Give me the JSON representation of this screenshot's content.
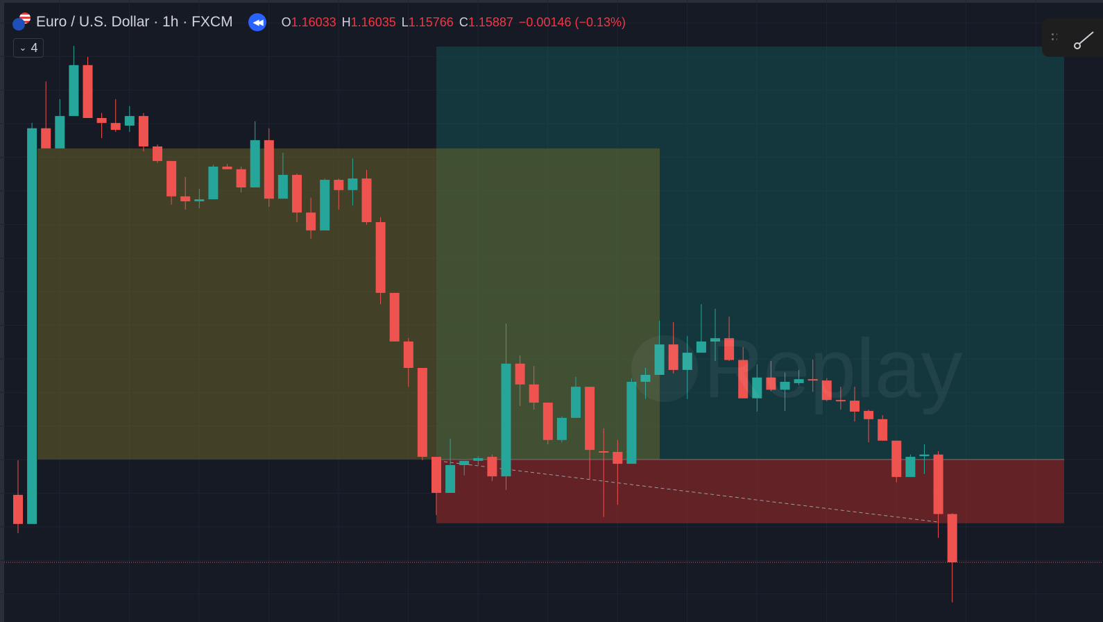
{
  "header": {
    "symbol_title": "Euro / U.S. Dollar · 1h · FXCM",
    "ohlc": [
      {
        "key": "O",
        "value": "1.16033"
      },
      {
        "key": "H",
        "value": "1.16035"
      },
      {
        "key": "L",
        "value": "1.15766"
      },
      {
        "key": "C",
        "value": "1.15887"
      }
    ],
    "change": "−0.00146 (−0.13%)",
    "indicators_count": "4"
  },
  "watermark": "Replay",
  "colors": {
    "up": "#26a69a",
    "down": "#ef5350",
    "background": "#161a25",
    "accent": "#2962ff"
  },
  "chart_data": {
    "type": "candlestick",
    "symbol": "EURUSD",
    "interval": "1h",
    "ohlc": [
      [
        1.16091,
        1.16196,
        1.15975,
        1.16003
      ],
      [
        1.16003,
        1.17216,
        1.16003,
        1.172
      ],
      [
        1.172,
        1.17342,
        1.17139,
        1.17139
      ],
      [
        1.17139,
        1.17288,
        1.17139,
        1.17237
      ],
      [
        1.17237,
        1.17449,
        1.17237,
        1.17391
      ],
      [
        1.17391,
        1.17416,
        1.17231,
        1.17231
      ],
      [
        1.17231,
        1.17246,
        1.1717,
        1.17216
      ],
      [
        1.17216,
        1.17288,
        1.17189,
        1.17195
      ],
      [
        1.17208,
        1.17267,
        1.17189,
        1.17237
      ],
      [
        1.17237,
        1.17246,
        1.1713,
        1.17145
      ],
      [
        1.17145,
        1.17151,
        1.17095,
        1.17101
      ],
      [
        1.17101,
        1.17101,
        1.16969,
        1.16994
      ],
      [
        1.16994,
        1.17053,
        1.16954,
        1.16979
      ],
      [
        1.16979,
        1.17017,
        1.16958,
        1.16985
      ],
      [
        1.16985,
        1.1709,
        1.16985,
        1.17084
      ],
      [
        1.17084,
        1.17092,
        1.17076,
        1.17076
      ],
      [
        1.17076,
        1.17084,
        1.17006,
        1.17021
      ],
      [
        1.17021,
        1.17221,
        1.17021,
        1.17164
      ],
      [
        1.17164,
        1.172,
        1.16962,
        1.16987
      ],
      [
        1.16987,
        1.17126,
        1.16987,
        1.17059
      ],
      [
        1.17059,
        1.17063,
        1.16916,
        1.16945
      ],
      [
        1.16945,
        1.1699,
        1.16866,
        1.16891
      ],
      [
        1.16891,
        1.17048,
        1.16891,
        1.17044
      ],
      [
        1.17044,
        1.17048,
        1.16954,
        1.17013
      ],
      [
        1.17013,
        1.17109,
        1.16966,
        1.17048
      ],
      [
        1.17048,
        1.17074,
        1.16908,
        1.16916
      ],
      [
        1.16916,
        1.16931,
        1.16668,
        1.16702
      ],
      [
        1.16702,
        1.16702,
        1.16555,
        1.16555
      ],
      [
        1.16555,
        1.16565,
        1.16418,
        1.16475
      ],
      [
        1.16475,
        1.16475,
        1.16196,
        1.16206
      ],
      [
        1.16206,
        1.16206,
        1.1603,
        1.16097
      ],
      [
        1.16097,
        1.16261,
        1.16097,
        1.16181
      ],
      [
        1.16181,
        1.16194,
        1.1615,
        1.16194
      ],
      [
        1.16194,
        1.16208,
        1.16181,
        1.16202
      ],
      [
        1.16206,
        1.16213,
        1.16133,
        1.16147
      ],
      [
        1.16147,
        1.16609,
        1.16106,
        1.16488
      ],
      [
        1.16488,
        1.16513,
        1.1636,
        1.16425
      ],
      [
        1.16425,
        1.16481,
        1.16349,
        1.1637
      ],
      [
        1.1637,
        1.1637,
        1.16244,
        1.16257
      ],
      [
        1.16257,
        1.16328,
        1.1625,
        1.16324
      ],
      [
        1.16324,
        1.16448,
        1.16324,
        1.16418
      ],
      [
        1.16418,
        1.16418,
        1.16139,
        1.16227
      ],
      [
        1.16223,
        1.16292,
        1.16024,
        1.16219
      ],
      [
        1.16221,
        1.16257,
        1.16061,
        1.16185
      ],
      [
        1.16185,
        1.16444,
        1.16185,
        1.16433
      ],
      [
        1.16433,
        1.16475,
        1.16381,
        1.16454
      ],
      [
        1.16454,
        1.16618,
        1.16454,
        1.16546
      ],
      [
        1.16546,
        1.16614,
        1.16458,
        1.16469
      ],
      [
        1.16469,
        1.16572,
        1.16381,
        1.16521
      ],
      [
        1.16521,
        1.16668,
        1.16521,
        1.16555
      ],
      [
        1.16555,
        1.16654,
        1.16496,
        1.16565
      ],
      [
        1.16565,
        1.1663,
        1.16496,
        1.16499
      ],
      [
        1.16499,
        1.16538,
        1.16383,
        1.16383
      ],
      [
        1.16383,
        1.16486,
        1.16343,
        1.16446
      ],
      [
        1.16446,
        1.16496,
        1.16404,
        1.16409
      ],
      [
        1.16409,
        1.16461,
        1.16345,
        1.16433
      ],
      [
        1.16429,
        1.16469,
        1.16423,
        1.16441
      ],
      [
        1.16441,
        1.165,
        1.16403,
        1.16437
      ],
      [
        1.16437,
        1.16444,
        1.16374,
        1.16378
      ],
      [
        1.16378,
        1.16418,
        1.16349,
        1.16376
      ],
      [
        1.16376,
        1.16418,
        1.16313,
        1.16343
      ],
      [
        1.16345,
        1.16349,
        1.1625,
        1.1632
      ],
      [
        1.1632,
        1.16332,
        1.16255,
        1.16255
      ],
      [
        1.16255,
        1.16255,
        1.16129,
        1.16145
      ],
      [
        1.16145,
        1.16213,
        1.16145,
        1.16206
      ],
      [
        1.16208,
        1.16244,
        1.16154,
        1.16213
      ],
      [
        1.16213,
        1.16223,
        1.15961,
        1.16033
      ],
      [
        1.16033,
        1.16035,
        1.15766,
        1.15887
      ]
    ],
    "zones": {
      "range_box": {
        "top": 1.17139,
        "bottom": 1.16198
      },
      "target_zone": {
        "top": 1.17447,
        "bottom": 1.16198
      },
      "stop_zone": {
        "top": 1.16198,
        "bottom": 1.16005
      }
    },
    "last_price": 1.15887
  }
}
